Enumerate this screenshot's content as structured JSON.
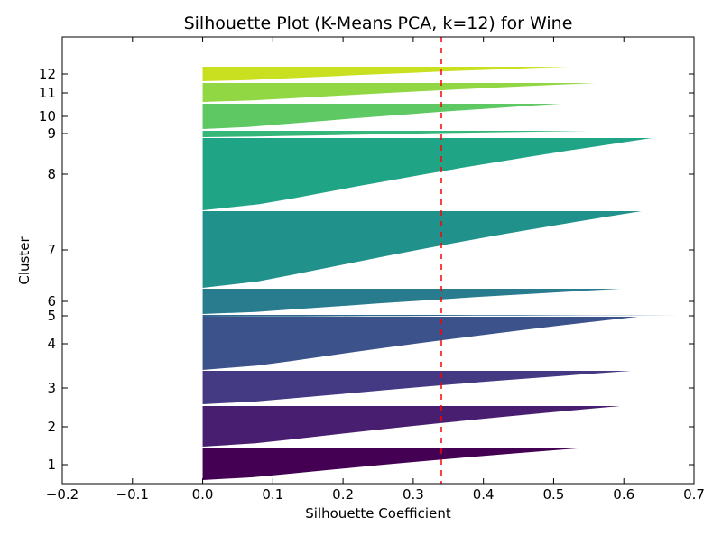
{
  "chart_data": {
    "type": "silhouette",
    "title": "Silhouette Plot (K-Means PCA, k=12) for Wine",
    "xlabel": "Silhouette Coefficient",
    "ylabel": "Cluster",
    "xlim": [
      -0.2,
      0.7
    ],
    "x_ticks": [
      -0.2,
      -0.1,
      0.0,
      0.1,
      0.2,
      0.3,
      0.4,
      0.5,
      0.6,
      0.7
    ],
    "x_tick_labels": [
      "−0.2",
      "−0.1",
      "0.0",
      "0.1",
      "0.2",
      "0.3",
      "0.4",
      "0.5",
      "0.6",
      "0.7"
    ],
    "average_silhouette": 0.34,
    "average_line_color": "#ff0000",
    "grid": false,
    "clusters": [
      {
        "label": "1",
        "min": -0.04,
        "max": 0.55,
        "color": "#440154"
      },
      {
        "label": "2",
        "min": 0.0,
        "max": 0.595,
        "color": "#481f70"
      },
      {
        "label": "3",
        "min": 0.0,
        "max": 0.61,
        "color": "#443983"
      },
      {
        "label": "4",
        "min": 0.0,
        "max": 0.62,
        "color": "#3b528b"
      },
      {
        "label": "5",
        "min": -0.005,
        "max": 0.68,
        "color": "#31688e"
      },
      {
        "label": "6",
        "min": 0.0,
        "max": 0.595,
        "color": "#287c8e"
      },
      {
        "label": "7",
        "min": 0.0,
        "max": 0.625,
        "color": "#21918c"
      },
      {
        "label": "8",
        "min": 0.0,
        "max": 0.64,
        "color": "#20a486"
      },
      {
        "label": "9",
        "min": -0.085,
        "max": 0.55,
        "color": "#35b779"
      },
      {
        "label": "10",
        "min": 0.0,
        "max": 0.51,
        "color": "#5ec962"
      },
      {
        "label": "11",
        "min": -0.015,
        "max": 0.56,
        "color": "#90d743"
      },
      {
        "label": "12",
        "min": 0.0,
        "max": 0.52,
        "color": "#c8e020"
      }
    ]
  }
}
